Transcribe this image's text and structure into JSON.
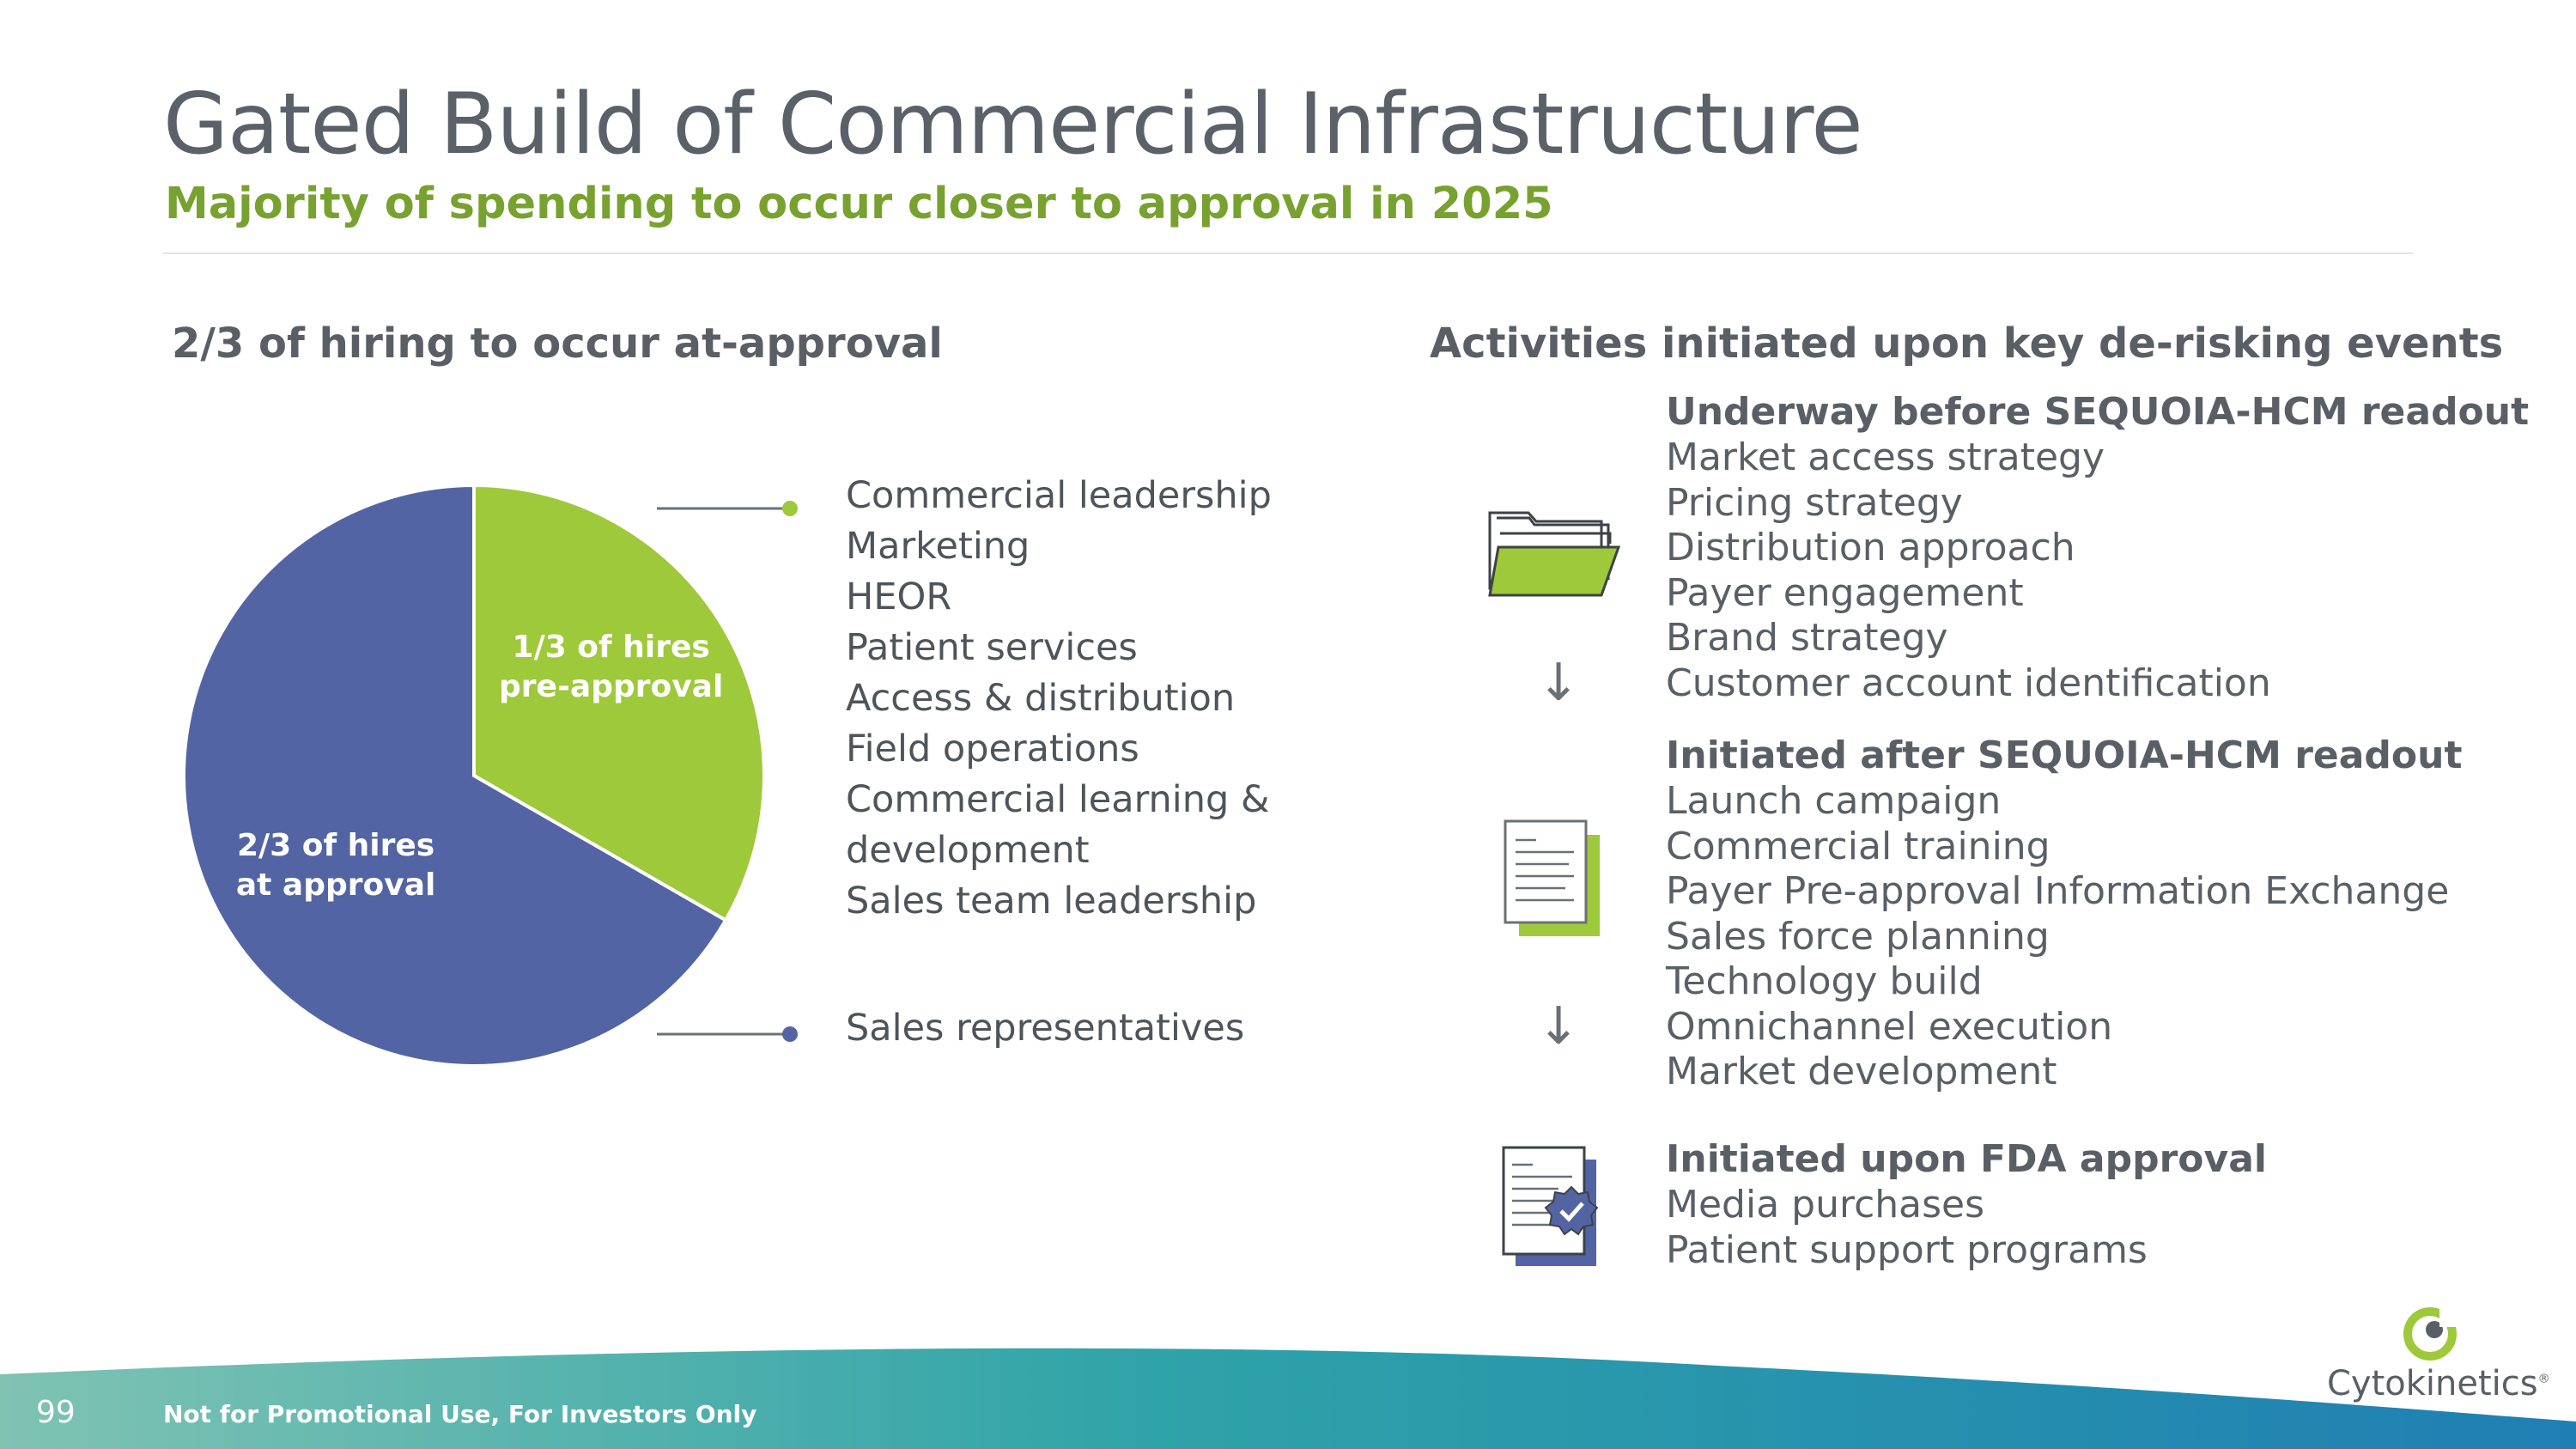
{
  "title": "Gated Build of Commercial Infrastructure",
  "subtitle": "Majority of spending to occur closer to approval in 2025",
  "left_heading": "2/3 of hiring to occur at-approval",
  "right_heading": "Activities initiated upon key de-risking events",
  "colors": {
    "green": "#9dc93a",
    "blue": "#5264a3",
    "title_gray": "#5b6168",
    "subtitle_green": "#78a22f"
  },
  "chart_data": {
    "type": "pie",
    "slices": [
      {
        "label_line1": "1/3 of hires",
        "label_line2": "pre-approval",
        "value": 33.3,
        "color": "#9dc93a"
      },
      {
        "label_line1": "2/3 of hires",
        "label_line2": "at approval",
        "value": 66.7,
        "color": "#5264a3"
      }
    ]
  },
  "green_roles": [
    "Commercial leadership",
    "Marketing",
    "HEOR",
    "Patient services",
    "Access & distribution",
    "Field operations",
    "Commercial learning &",
    "development",
    "Sales team leadership"
  ],
  "blue_roles": [
    "Sales representatives"
  ],
  "sections": [
    {
      "title": "Underway before SEQUOIA-HCM readout",
      "icon": "folder-icon",
      "items": [
        "Market access strategy",
        "Pricing strategy",
        "Distribution approach",
        "Payer engagement",
        "Brand strategy",
        "Customer account identification"
      ]
    },
    {
      "title": "Initiated after SEQUOIA-HCM readout",
      "icon": "document-icon",
      "items": [
        "Launch campaign",
        "Commercial training",
        "Payer Pre-approval Information Exchange",
        "Sales force planning",
        "Technology build",
        "Omnichannel execution",
        "Market development"
      ]
    },
    {
      "title": "Initiated upon FDA approval",
      "icon": "certified-document-icon",
      "items": [
        "Media purchases",
        "Patient support programs"
      ]
    }
  ],
  "footer": {
    "page_number": "99",
    "note": "Not for Promotional Use, For Investors Only",
    "logo": "Cytokinetics"
  }
}
